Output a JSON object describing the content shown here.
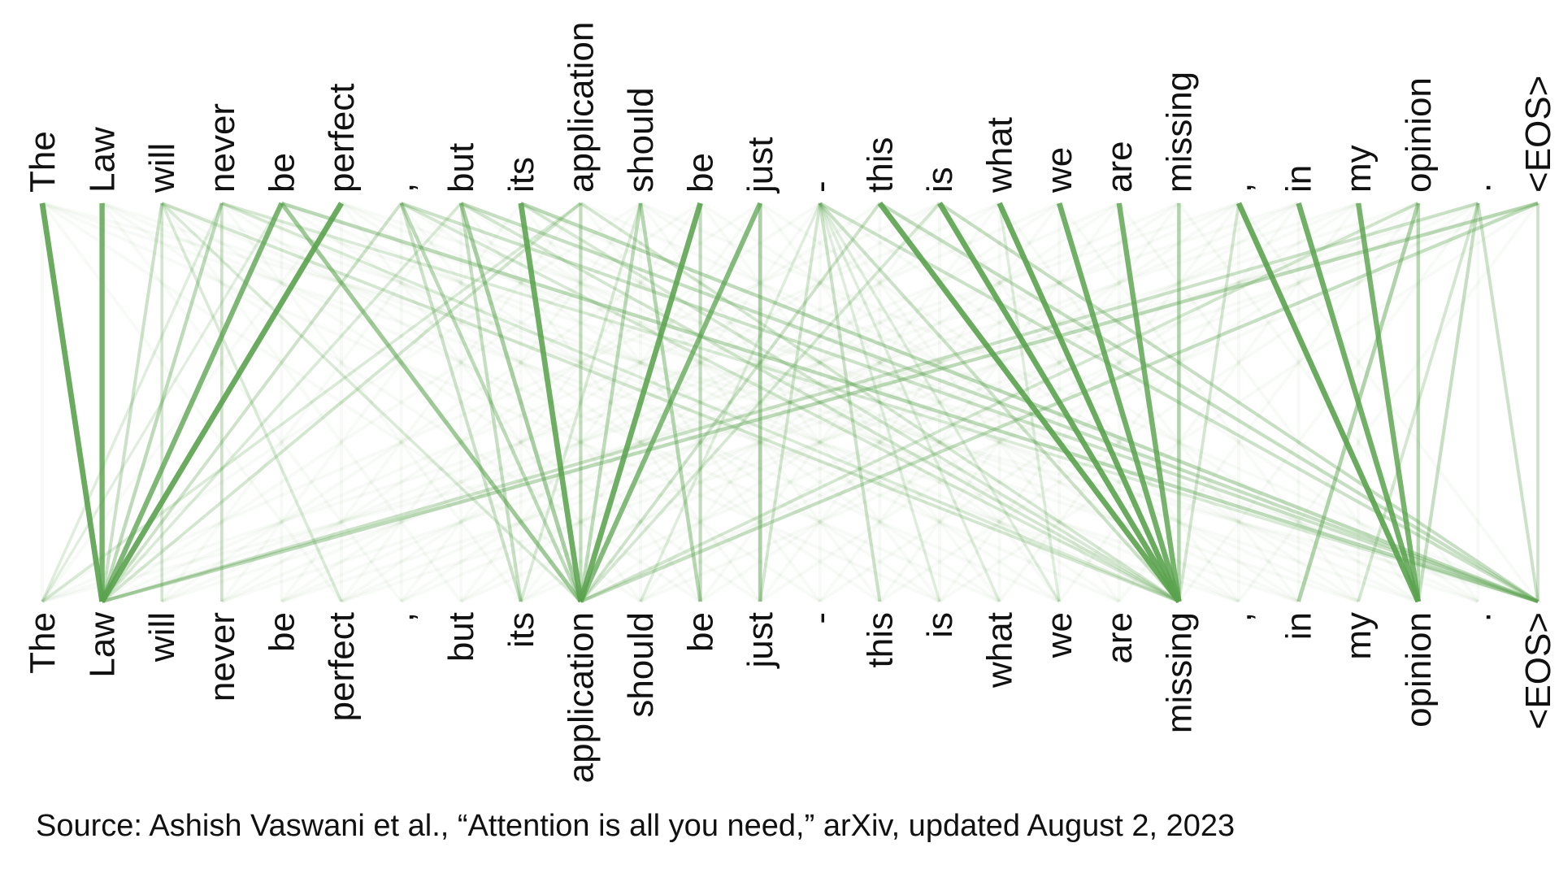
{
  "tokens": [
    "The",
    "Law",
    "will",
    "never",
    "be",
    "perfect",
    ",",
    "but",
    "its",
    "application",
    "should",
    "be",
    "just",
    "-",
    "this",
    "is",
    "what",
    "we",
    "are",
    "missing",
    ",",
    "in",
    "my",
    "opinion",
    ".",
    "<EOS>"
  ],
  "line_color": "#5ba34f",
  "attention": [
    [
      0,
      1,
      0.95
    ],
    [
      1,
      1,
      0.85
    ],
    [
      2,
      1,
      0.25
    ],
    [
      3,
      1,
      0.35
    ],
    [
      4,
      1,
      0.8
    ],
    [
      5,
      1,
      0.95
    ],
    [
      3,
      0,
      0.12
    ],
    [
      4,
      0,
      0.1
    ],
    [
      2,
      5,
      0.15
    ],
    [
      6,
      1,
      0.2
    ],
    [
      7,
      1,
      0.15
    ],
    [
      8,
      9,
      0.92
    ],
    [
      7,
      9,
      0.5
    ],
    [
      6,
      9,
      0.35
    ],
    [
      9,
      9,
      0.3
    ],
    [
      10,
      9,
      0.35
    ],
    [
      11,
      9,
      0.92
    ],
    [
      12,
      9,
      0.75
    ],
    [
      14,
      9,
      0.2
    ],
    [
      15,
      9,
      0.18
    ],
    [
      4,
      9,
      0.55
    ],
    [
      2,
      9,
      0.15
    ],
    [
      7,
      8,
      0.3
    ],
    [
      6,
      8,
      0.25
    ],
    [
      10,
      11,
      0.4
    ],
    [
      11,
      11,
      0.3
    ],
    [
      12,
      12,
      0.45
    ],
    [
      13,
      14,
      0.25
    ],
    [
      13,
      12,
      0.2
    ],
    [
      14,
      19,
      0.95
    ],
    [
      15,
      19,
      0.95
    ],
    [
      16,
      19,
      0.95
    ],
    [
      17,
      19,
      0.9
    ],
    [
      18,
      19,
      0.85
    ],
    [
      19,
      19,
      0.4
    ],
    [
      2,
      19,
      0.2
    ],
    [
      3,
      19,
      0.15
    ],
    [
      6,
      19,
      0.18
    ],
    [
      7,
      19,
      0.2
    ],
    [
      8,
      19,
      0.18
    ],
    [
      9,
      19,
      0.15
    ],
    [
      13,
      19,
      0.25
    ],
    [
      20,
      23,
      0.95
    ],
    [
      21,
      23,
      0.9
    ],
    [
      22,
      23,
      0.85
    ],
    [
      23,
      23,
      0.35
    ],
    [
      24,
      23,
      0.3
    ],
    [
      3,
      25,
      0.15
    ],
    [
      4,
      25,
      0.35
    ],
    [
      6,
      25,
      0.25
    ],
    [
      7,
      25,
      0.3
    ],
    [
      8,
      25,
      0.35
    ],
    [
      13,
      25,
      0.25
    ],
    [
      14,
      25,
      0.3
    ],
    [
      15,
      25,
      0.25
    ],
    [
      23,
      21,
      0.45
    ],
    [
      24,
      22,
      0.2
    ],
    [
      25,
      1,
      0.35
    ],
    [
      24,
      1,
      0.25
    ],
    [
      25,
      9,
      0.3
    ],
    [
      23,
      9,
      0.2
    ],
    [
      9,
      0,
      0.15
    ],
    [
      9,
      1,
      0.2
    ],
    [
      20,
      19,
      0.2
    ],
    [
      13,
      17,
      0.12
    ],
    [
      13,
      16,
      0.12
    ],
    [
      13,
      15,
      0.12
    ],
    [
      24,
      25,
      0.25
    ],
    [
      25,
      25,
      0.2
    ],
    [
      2,
      2,
      0.15
    ],
    [
      3,
      3,
      0.2
    ],
    [
      16,
      17,
      0.12
    ],
    [
      10,
      8,
      0.15
    ],
    [
      13,
      10,
      0.12
    ]
  ],
  "source": "Source: Ashish Vaswani et al., “Attention is all you need,” arXiv, updated August 2, 2023"
}
